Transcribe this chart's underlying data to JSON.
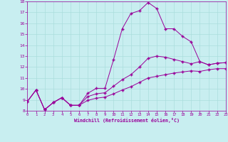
{
  "xlabel": "Windchill (Refroidissement éolien,°C)",
  "bg_color": "#c8eef0",
  "line_color": "#990099",
  "grid_color": "#aadddd",
  "xlim": [
    0,
    23
  ],
  "ylim": [
    8,
    18
  ],
  "xticks": [
    0,
    1,
    2,
    3,
    4,
    5,
    6,
    7,
    8,
    9,
    10,
    11,
    12,
    13,
    14,
    15,
    16,
    17,
    18,
    19,
    20,
    21,
    22,
    23
  ],
  "yticks": [
    8,
    9,
    10,
    11,
    12,
    13,
    14,
    15,
    16,
    17,
    18
  ],
  "curve1_x": [
    0,
    1,
    2,
    3,
    4,
    5,
    6,
    7,
    8,
    9,
    10,
    11,
    12,
    13,
    14,
    15,
    16,
    17,
    18,
    19,
    20,
    21,
    22,
    23
  ],
  "curve1_y": [
    8.85,
    9.9,
    8.1,
    8.75,
    9.2,
    8.5,
    8.5,
    9.6,
    10.05,
    10.05,
    12.7,
    15.5,
    16.9,
    17.15,
    17.9,
    17.35,
    15.5,
    15.5,
    14.8,
    14.3,
    12.5,
    12.2,
    12.35,
    12.4
  ],
  "curve2_x": [
    0,
    1,
    2,
    3,
    4,
    5,
    6,
    7,
    8,
    9,
    10,
    11,
    12,
    13,
    14,
    15,
    16,
    17,
    18,
    19,
    20,
    21,
    22,
    23
  ],
  "curve2_y": [
    8.85,
    9.9,
    8.1,
    8.75,
    9.2,
    8.5,
    8.5,
    9.3,
    9.55,
    9.65,
    10.25,
    10.85,
    11.3,
    12.0,
    12.8,
    13.0,
    12.9,
    12.7,
    12.5,
    12.3,
    12.5,
    12.2,
    12.35,
    12.4
  ],
  "curve3_x": [
    0,
    1,
    2,
    3,
    4,
    5,
    6,
    7,
    8,
    9,
    10,
    11,
    12,
    13,
    14,
    15,
    16,
    17,
    18,
    19,
    20,
    21,
    22,
    23
  ],
  "curve3_y": [
    8.85,
    9.9,
    8.1,
    8.75,
    9.2,
    8.5,
    8.5,
    8.95,
    9.15,
    9.25,
    9.55,
    9.9,
    10.2,
    10.6,
    11.0,
    11.15,
    11.3,
    11.45,
    11.55,
    11.65,
    11.6,
    11.75,
    11.85,
    11.85
  ]
}
